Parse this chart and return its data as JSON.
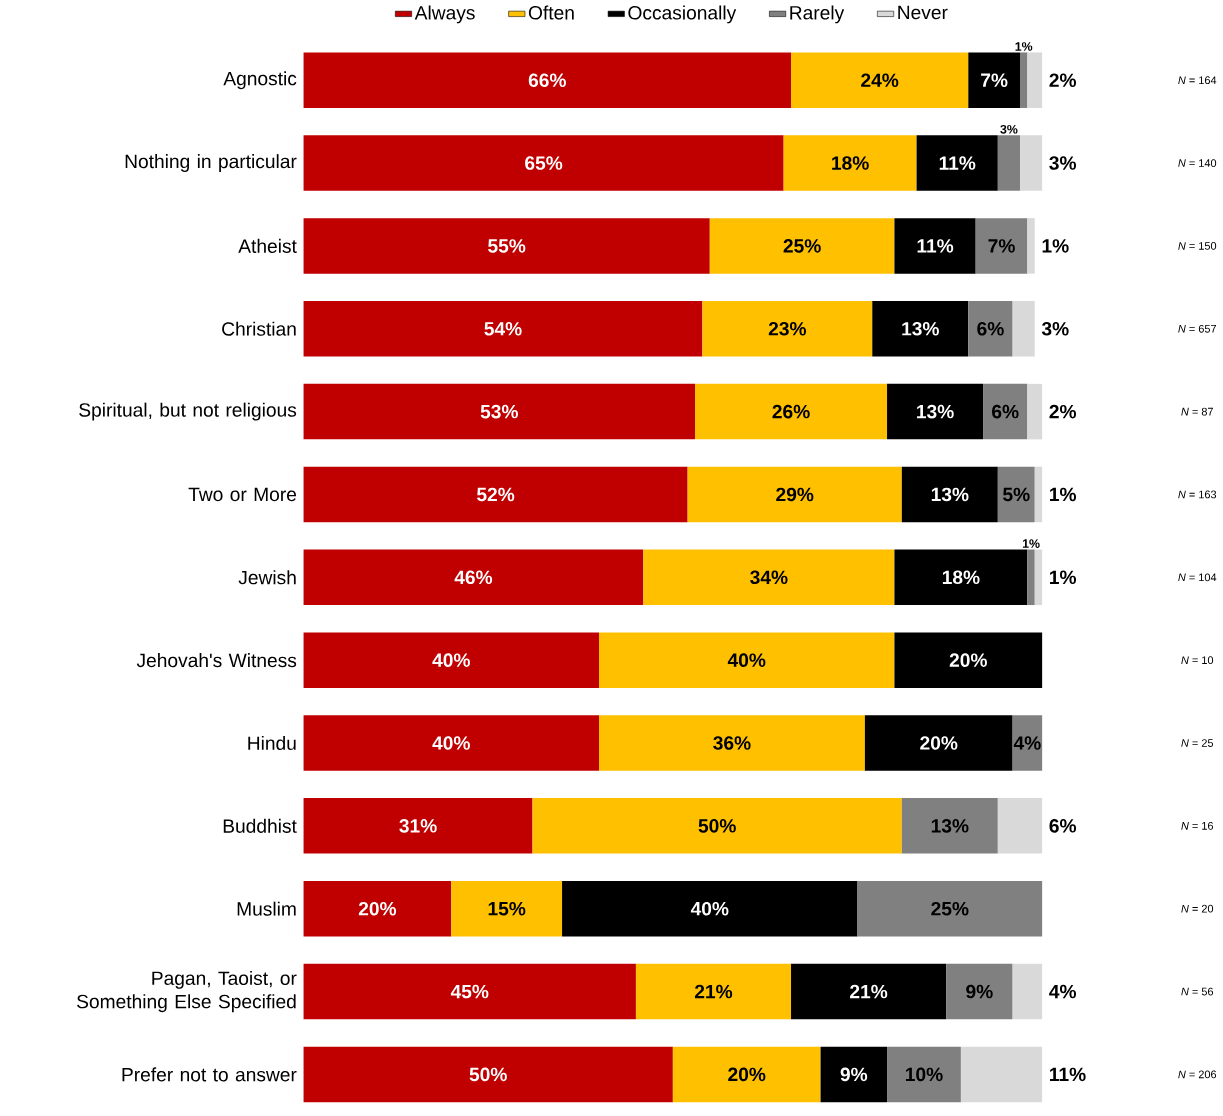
{
  "chart_data": {
    "type": "bar",
    "orientation": "horizontal",
    "stacked": true,
    "legend": "top",
    "categories": [
      "Agnostic",
      "Nothing in particular",
      "Atheist",
      "Christian",
      "Spiritual, but not religious",
      "Two or More",
      "Jewish",
      "Jehovah's Witness",
      "Hindu",
      "Buddhist",
      "Muslim",
      "Pagan, Taoist, or Something Else Specified",
      "Prefer not to answer"
    ],
    "series": [
      {
        "name": "Always",
        "color": "#c00000",
        "values": [
          66,
          65,
          55,
          54,
          53,
          52,
          46,
          40,
          40,
          31,
          20,
          45,
          50
        ],
        "value_labels": [
          "66%",
          "65%",
          "55%",
          "54%",
          "53%",
          "52%",
          "46%",
          "40%",
          "40%",
          "31%",
          "20%",
          "45%",
          "50%"
        ]
      },
      {
        "name": "Often",
        "color": "#ffc000",
        "values": [
          24,
          18,
          25,
          23,
          26,
          29,
          34,
          40,
          36,
          50,
          15,
          21,
          20
        ],
        "value_labels": [
          "24%",
          "18%",
          "25%",
          "23%",
          "26%",
          "29%",
          "34%",
          "40%",
          "36%",
          "50%",
          "15%",
          "21%",
          "20%"
        ]
      },
      {
        "name": "Occasionally",
        "color": "#000000",
        "values": [
          7,
          11,
          11,
          13,
          13,
          13,
          18,
          20,
          20,
          null,
          40,
          21,
          9
        ],
        "value_labels": [
          "7%",
          "11%",
          "11%",
          "13%",
          "13%",
          "13%",
          "18%",
          "20%",
          "20%",
          null,
          "40%",
          "21%",
          "9%"
        ]
      },
      {
        "name": "Rarely",
        "color": "#808080",
        "values": [
          1,
          3,
          7,
          6,
          6,
          5,
          1,
          null,
          4,
          13,
          25,
          9,
          10
        ],
        "value_labels": [
          "1%",
          "3%",
          "7%",
          "6%",
          "6%",
          "5%",
          "1%",
          null,
          "4%",
          "13%",
          "25%",
          "9%",
          "10%"
        ]
      },
      {
        "name": "Never",
        "color": "#d9d9d9",
        "values": [
          2,
          3,
          1,
          3,
          2,
          1,
          1,
          null,
          null,
          6,
          null,
          4,
          11
        ],
        "value_labels": [
          "2%",
          "3%",
          "1%",
          "3%",
          "2%",
          "1%",
          "1%",
          null,
          null,
          "6%",
          null,
          "4%",
          "11%"
        ]
      }
    ],
    "annotations": [
      "*N* = 164",
      "*N* = 140",
      "*N* = 150",
      "*N* = 657",
      "*N* = 87",
      "*N* = 163",
      "*N* = 104",
      "*N* = 10",
      "*N* = 25",
      "*N* = 16",
      "*N* = 20",
      "*N* = 56",
      "*N* = 206"
    ]
  }
}
